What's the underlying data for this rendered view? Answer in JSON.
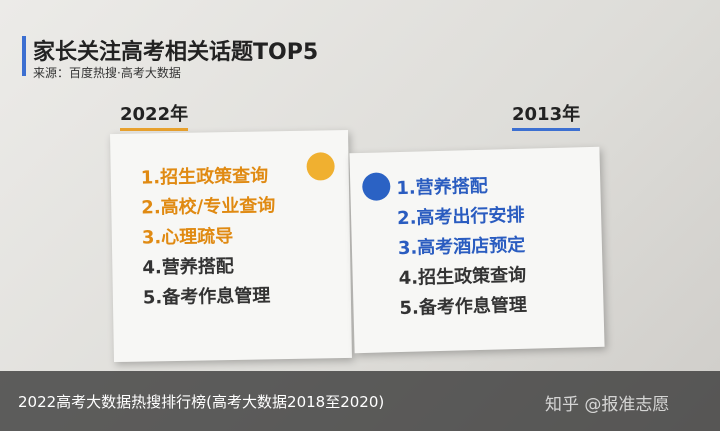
{
  "header": {
    "title": "家长关注高考相关话题TOP5",
    "source": "来源：百度热搜·高考大数据"
  },
  "lists": [
    {
      "year": "2022年",
      "items": [
        "1.招生政策查询",
        "2.高校/专业查询",
        "3.心理疏导",
        "4.营养搭配",
        "5.备考作息管理"
      ]
    },
    {
      "year": "2013年",
      "items": [
        "1.营养搭配",
        "2.高考出行安排",
        "3.高考酒店预定",
        "4.招生政策查询",
        "5.备考作息管理"
      ]
    }
  ],
  "caption": "2022高考大数据热搜排行榜(高考大数据2018至2020)",
  "watermark": "知乎 @报准志愿"
}
